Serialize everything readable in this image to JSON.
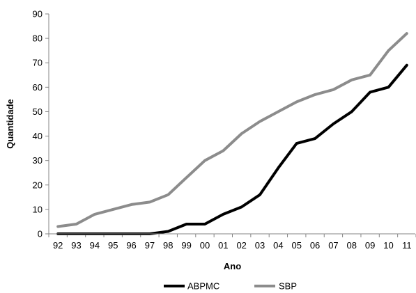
{
  "chart_data": {
    "type": "line",
    "title": "",
    "xlabel": "Ano",
    "ylabel": "Quantidade",
    "categories": [
      "92",
      "93",
      "94",
      "95",
      "96",
      "97",
      "98",
      "99",
      "00",
      "01",
      "02",
      "03",
      "04",
      "05",
      "06",
      "07",
      "08",
      "09",
      "10",
      "11"
    ],
    "ylim": [
      0,
      90
    ],
    "yticks": [
      0,
      10,
      20,
      30,
      40,
      50,
      60,
      70,
      80,
      90
    ],
    "grid": false,
    "legend_position": "bottom",
    "series": [
      {
        "name": "ABPMC",
        "color": "#000000",
        "values": [
          0,
          0,
          0,
          0,
          0,
          0,
          1,
          4,
          4,
          8,
          11,
          16,
          27,
          37,
          39,
          45,
          50,
          58,
          60,
          69
        ]
      },
      {
        "name": "SBP",
        "color": "#8c8c8c",
        "values": [
          3,
          4,
          8,
          10,
          12,
          13,
          16,
          23,
          30,
          34,
          41,
          46,
          50,
          54,
          57,
          59,
          63,
          65,
          75,
          82
        ]
      }
    ]
  }
}
